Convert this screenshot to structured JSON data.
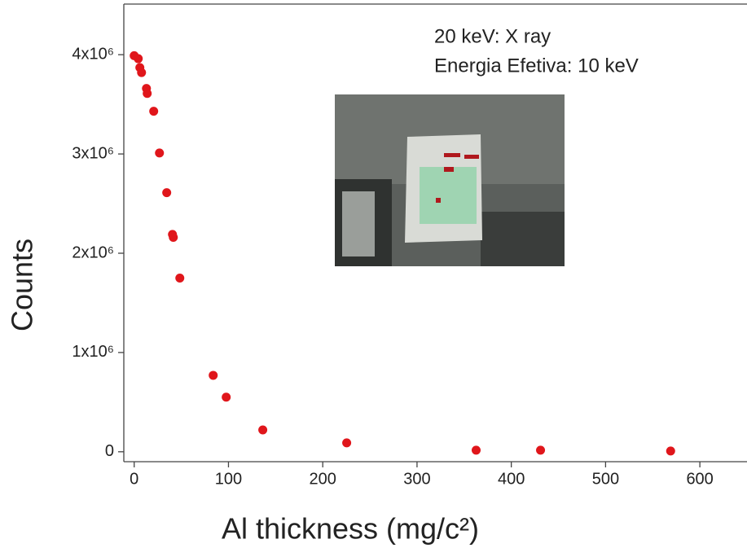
{
  "chart_data": {
    "type": "scatter",
    "x_label": "Al thickness (mg/c²)",
    "y_label": "Counts",
    "annotations": [
      "20 keV: X ray",
      "Energia Efetiva: 10 keV"
    ],
    "color": "#e0161b",
    "x": [
      0,
      4.3,
      6,
      7.8,
      13,
      13.8,
      20.7,
      26.8,
      34.5,
      40.6,
      41.5,
      48.4,
      83.8,
      97.6,
      136.4,
      225.4,
      362.7,
      431,
      569
    ],
    "values": [
      3990000,
      3960000,
      3870000,
      3820000,
      3660000,
      3610000,
      3430000,
      3010000,
      2610000,
      2190000,
      2160000,
      1750000,
      770000,
      550000,
      220000,
      90000,
      16000,
      16000,
      8000
    ],
    "xlim": [
      -11,
      650
    ],
    "ylim": [
      -100000,
      4510000
    ],
    "xticks": [
      0,
      100,
      200,
      300,
      400,
      500,
      600
    ],
    "yticks": [
      0,
      {
        "value": 1000000,
        "label": "1x10⁶"
      },
      {
        "value": 2000000,
        "label": "2x10⁶"
      },
      {
        "value": 3000000,
        "label": "3x10⁶"
      },
      {
        "value": 4000000,
        "label": "4x10⁶"
      }
    ]
  }
}
